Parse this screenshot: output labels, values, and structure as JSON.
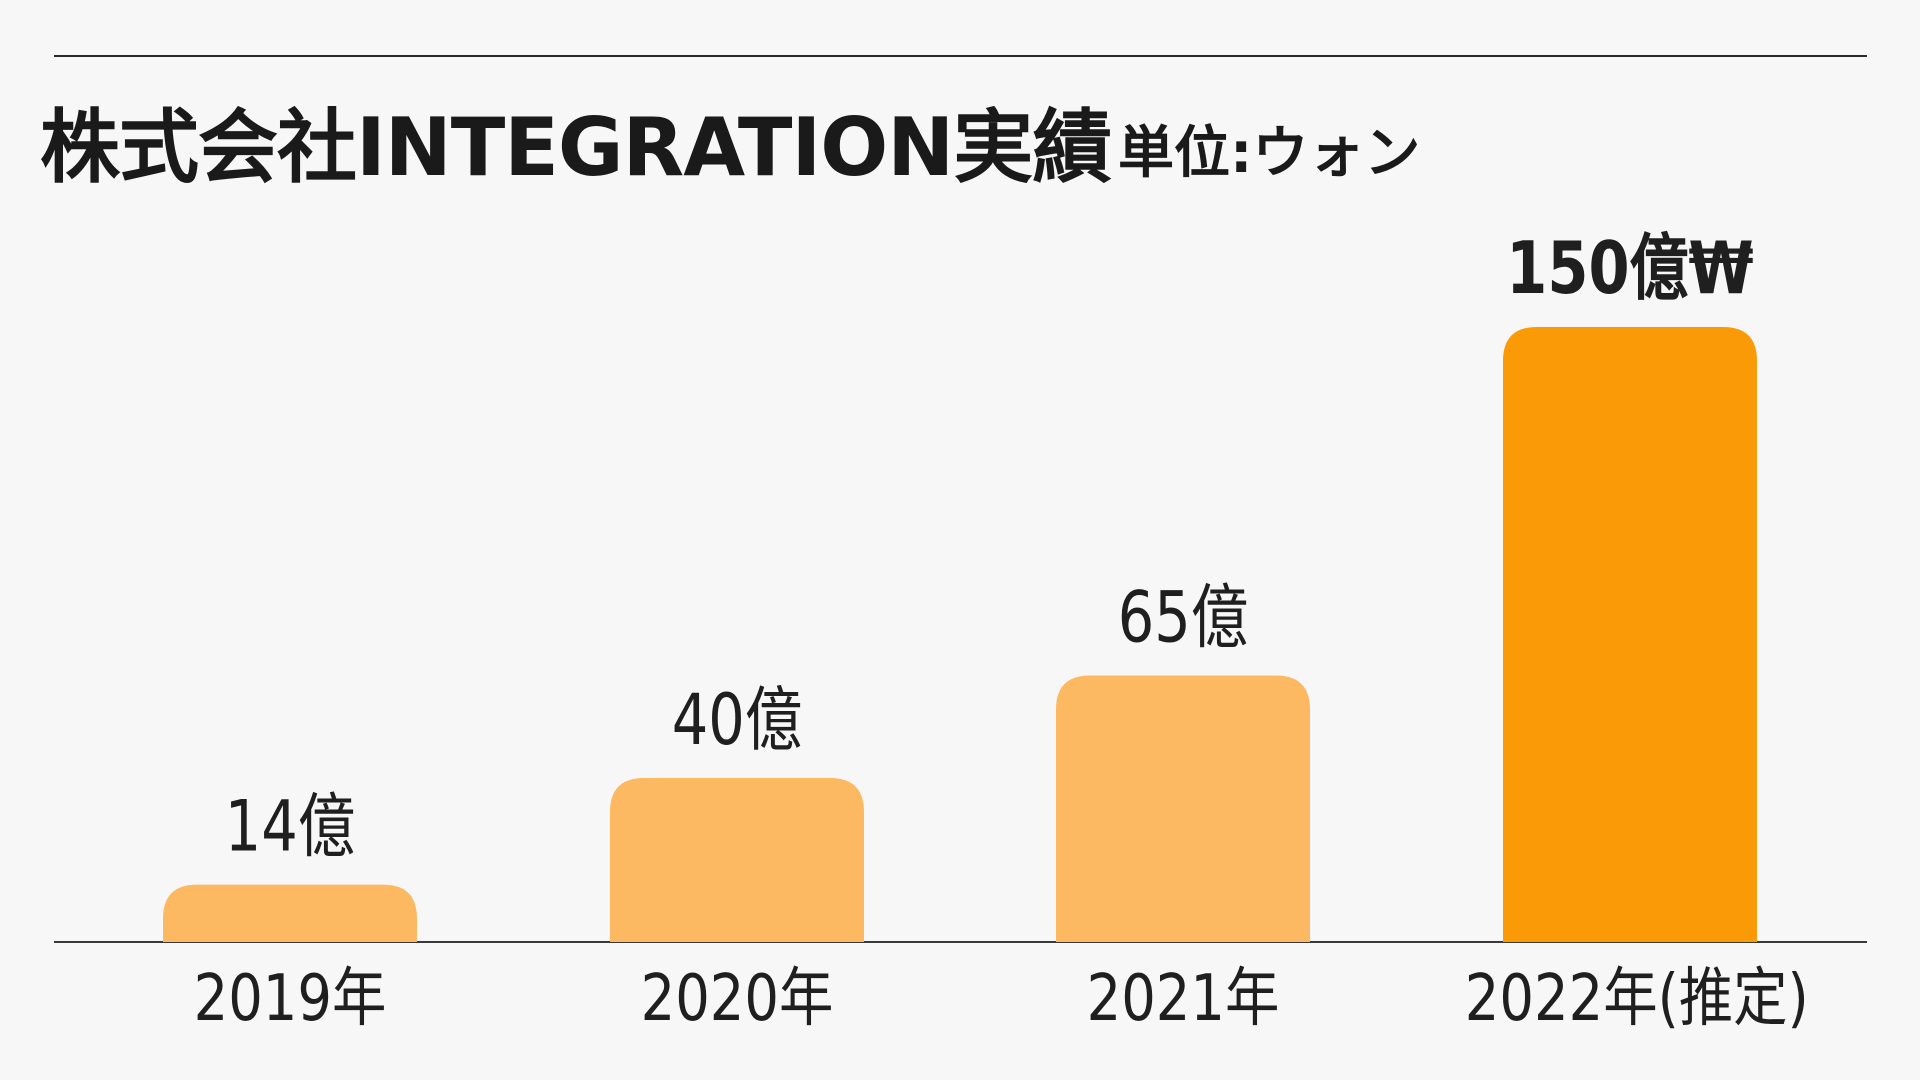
{
  "chart_data": {
    "type": "bar",
    "title": "株式会社INTEGRATION実績",
    "unit_label": "単位:ウォン",
    "categories": [
      "2019年",
      "2020年",
      "2021年",
      "2022年(推定)"
    ],
    "values": [
      14,
      40,
      65,
      150
    ],
    "value_labels": [
      "14億",
      "40億",
      "65億",
      "150億₩"
    ],
    "ylim": [
      0,
      150
    ],
    "grid": false,
    "legend": "none",
    "colors": [
      "#fdb961",
      "#fdb961",
      "#fdb961",
      "#fa9a06"
    ]
  }
}
